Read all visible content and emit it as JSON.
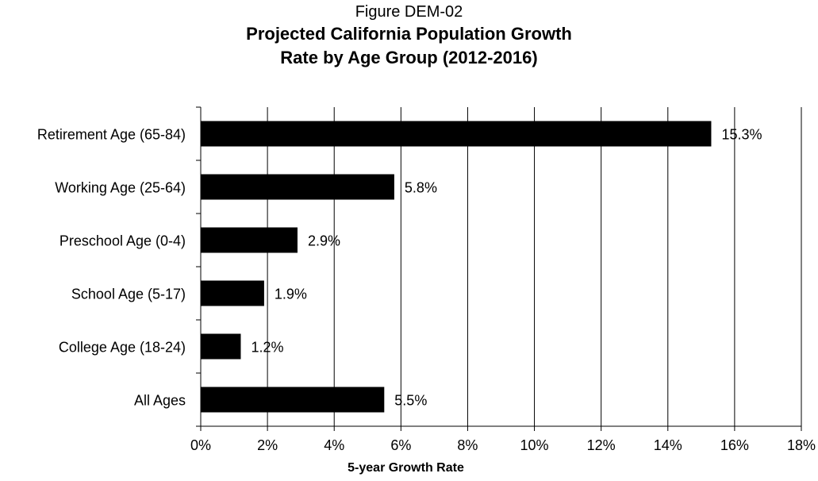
{
  "figure_label": "Figure DEM-02",
  "title_line1": "Projected California Population Growth",
  "title_line2": "Rate by Age Group (2012-2016)",
  "chart_data": {
    "type": "bar",
    "orientation": "horizontal",
    "title": "Projected California Population Growth Rate by Age Group (2012-2016)",
    "xlabel": "5-year Growth Rate",
    "ylabel": "",
    "categories": [
      "Retirement Age (65-84)",
      "Working Age (25-64)",
      "Preschool Age (0-4)",
      "School Age (5-17)",
      "College Age (18-24)",
      "All Ages"
    ],
    "values": [
      15.3,
      5.8,
      2.9,
      1.9,
      1.2,
      5.5
    ],
    "data_labels": [
      "15.3%",
      "5.8%",
      "2.9%",
      "1.9%",
      "1.2%",
      "5.5%"
    ],
    "xlim": [
      0,
      18
    ],
    "x_ticks": [
      0,
      2,
      4,
      6,
      8,
      10,
      12,
      14,
      16,
      18
    ],
    "x_tick_labels": [
      "0%",
      "2%",
      "4%",
      "6%",
      "8%",
      "10%",
      "12%",
      "14%",
      "16%",
      "18%"
    ],
    "grid": "vertical",
    "legend": "none",
    "bar_color": "#000000"
  }
}
